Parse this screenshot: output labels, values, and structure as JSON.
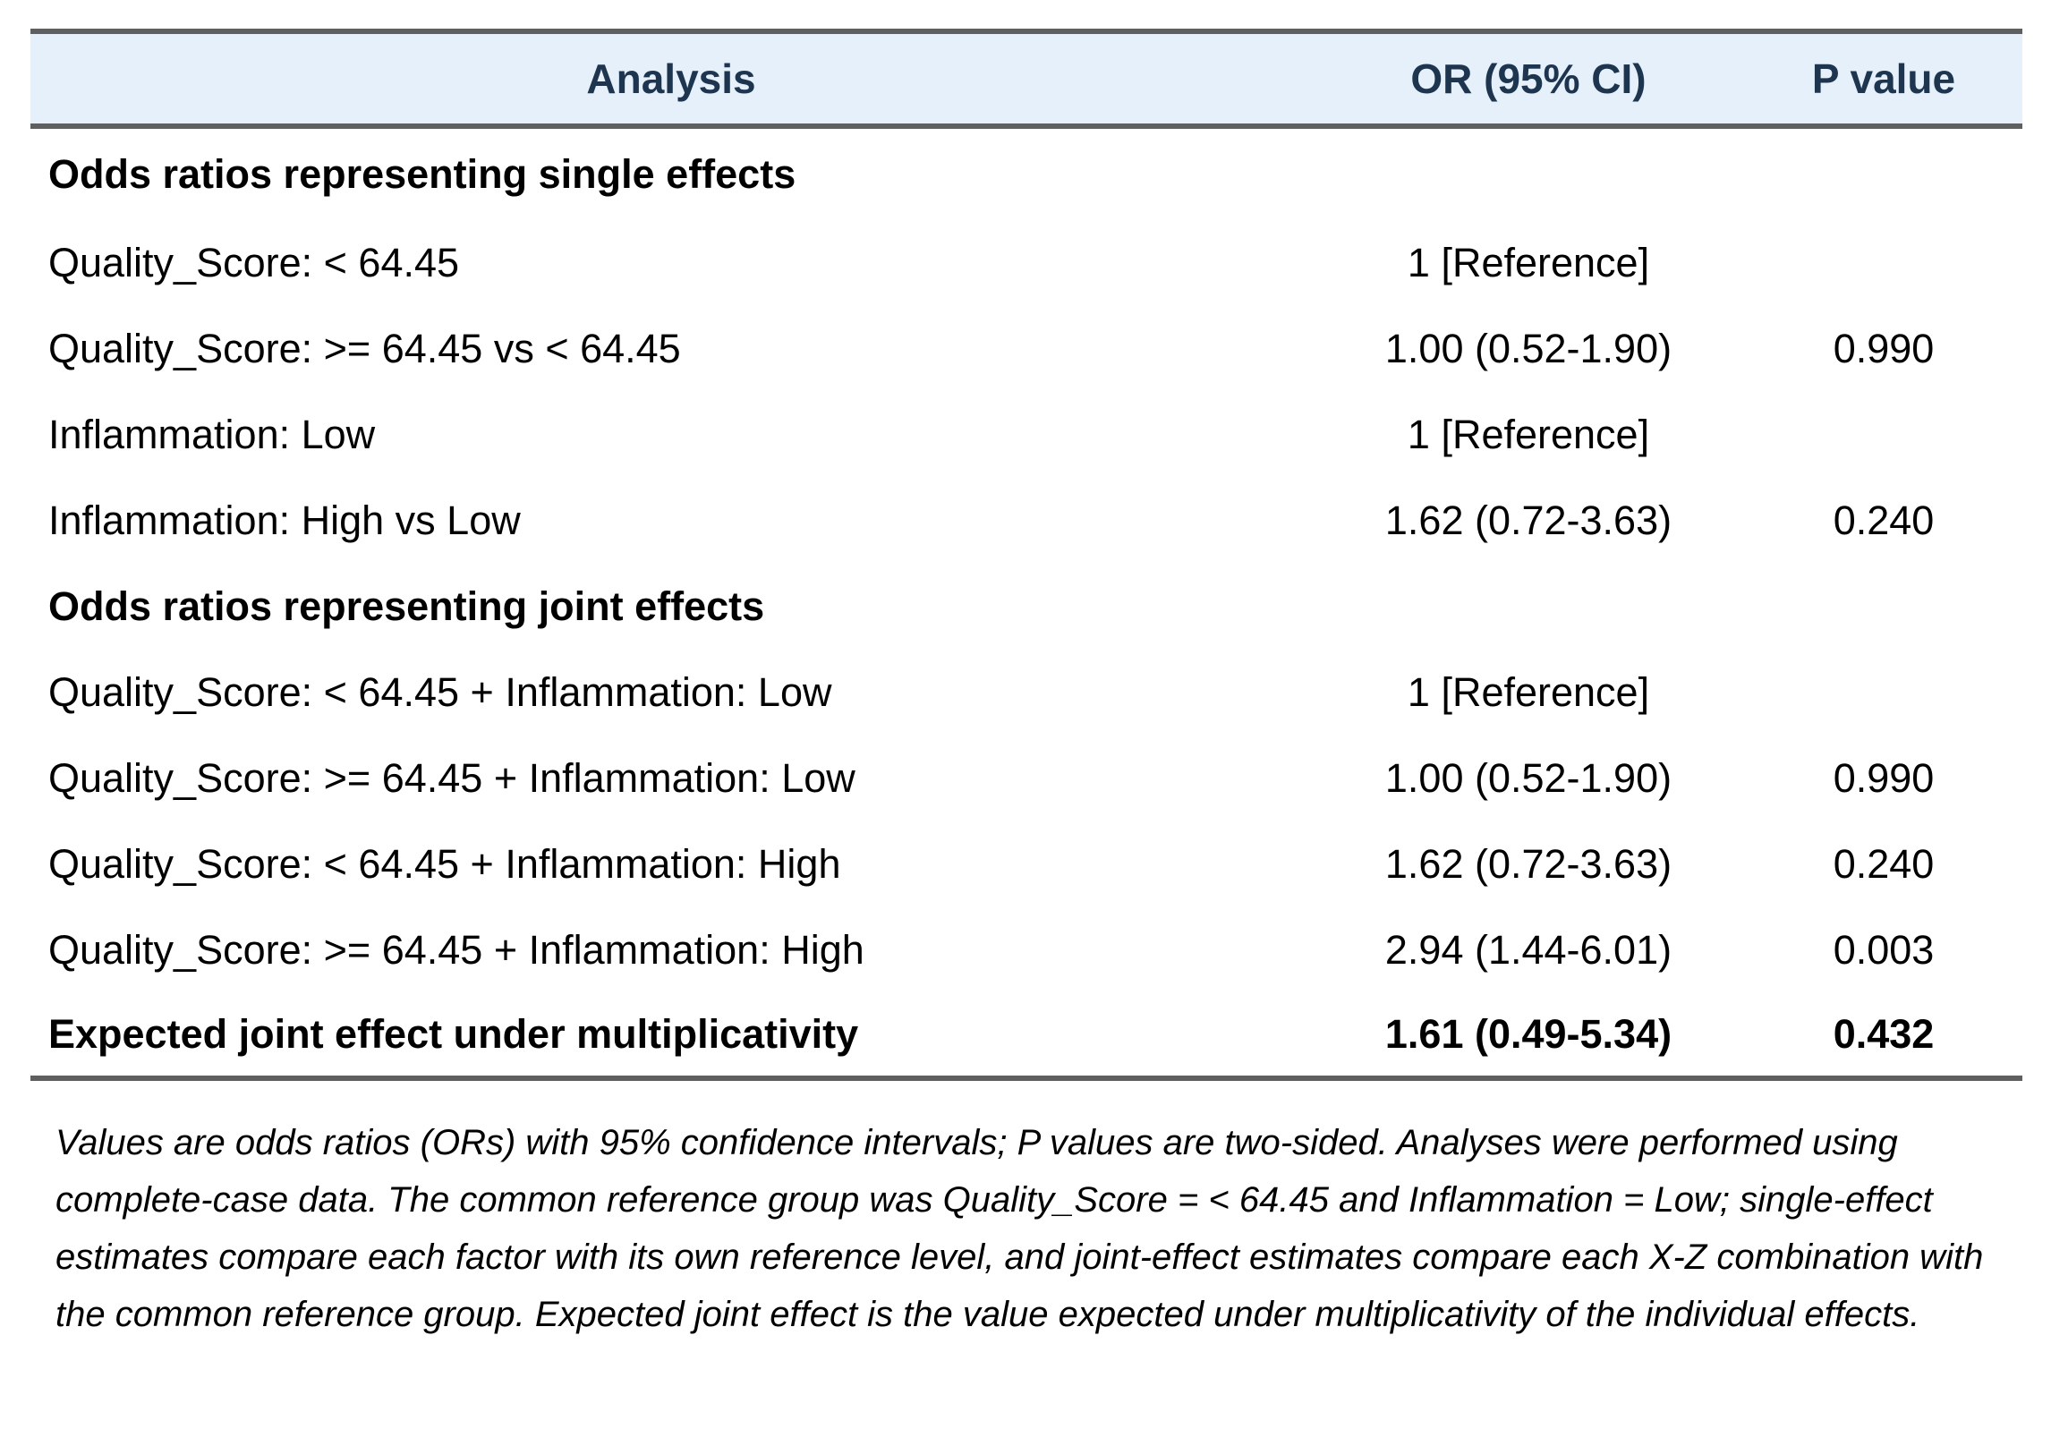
{
  "header": {
    "analysis": "Analysis",
    "or": "OR (95% CI)",
    "p": "P value"
  },
  "rows": [
    {
      "analysis": "Odds ratios representing single effects",
      "or": "",
      "p": ""
    },
    {
      "analysis": "Quality_Score: < 64.45",
      "or": "1 [Reference]",
      "p": ""
    },
    {
      "analysis": "Quality_Score: >= 64.45 vs < 64.45",
      "or": "1.00 (0.52-1.90)",
      "p": "0.990"
    },
    {
      "analysis": "Inflammation: Low",
      "or": "1 [Reference]",
      "p": ""
    },
    {
      "analysis": "Inflammation: High vs Low",
      "or": "1.62 (0.72-3.63)",
      "p": "0.240"
    },
    {
      "analysis": "Odds ratios representing joint effects",
      "or": "",
      "p": ""
    },
    {
      "analysis": "Quality_Score: < 64.45 + Inflammation: Low",
      "or": "1 [Reference]",
      "p": ""
    },
    {
      "analysis": "Quality_Score: >= 64.45 + Inflammation: Low",
      "or": "1.00 (0.52-1.90)",
      "p": "0.990"
    },
    {
      "analysis": "Quality_Score: < 64.45 + Inflammation: High",
      "or": "1.62 (0.72-3.63)",
      "p": "0.240"
    },
    {
      "analysis": "Quality_Score: >= 64.45 + Inflammation: High",
      "or": "2.94 (1.44-6.01)",
      "p": "0.003"
    },
    {
      "analysis": "Expected joint effect under multiplicativity",
      "or": "1.61 (0.49-5.34)",
      "p": "0.432"
    }
  ],
  "footnote": "Values are odds ratios (ORs) with 95% confidence intervals; P values are two-sided. Analyses were performed using complete-case data. The common reference group was Quality_Score = < 64.45 and Inflammation = Low; single-effect estimates compare each factor with its own reference level, and joint-effect estimates compare each X-Z combination with the common reference group. Expected joint effect is the value expected under multiplicativity of the individual effects.",
  "colors": {
    "header_bg": "#e6f0fa",
    "header_text": "#1e3550",
    "rule": "#5f5f5f"
  }
}
